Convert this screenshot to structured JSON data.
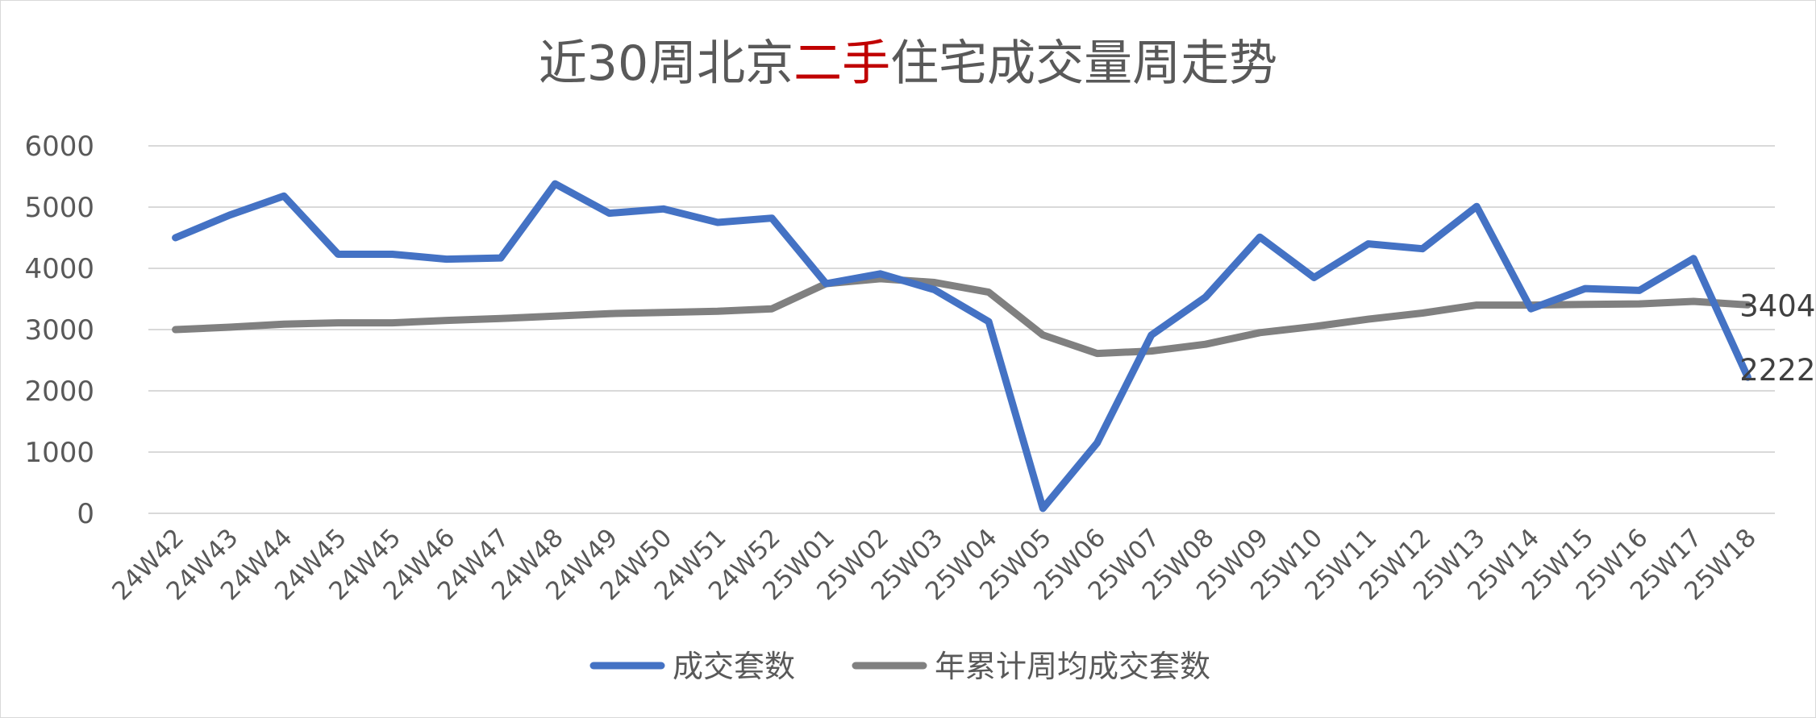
{
  "chart_data": {
    "type": "line",
    "title": {
      "before": "近30周北京",
      "accent": "二手",
      "after": "住宅成交量周走势"
    },
    "accent_color": "#c00000",
    "categories": [
      "24W42",
      "24W43",
      "24W44",
      "24W45",
      "24W45",
      "24W46",
      "24W47",
      "24W48",
      "24W49",
      "24W50",
      "24W51",
      "24W52",
      "25W01",
      "25W02",
      "25W03",
      "25W04",
      "25W05",
      "25W06",
      "25W07",
      "25W08",
      "25W09",
      "25W10",
      "25W11",
      "25W12",
      "25W13",
      "25W14",
      "25W15",
      "25W16",
      "25W17",
      "25W18"
    ],
    "ylim": [
      0,
      6000
    ],
    "yticks": [
      "0",
      "1000",
      "2000",
      "3000",
      "4000",
      "5000",
      "6000"
    ],
    "grid": true,
    "legend_position": "bottom",
    "series": [
      {
        "name": "成交套数",
        "color": "#4472c4",
        "values": [
          4500,
          4870,
          5180,
          4230,
          4230,
          4150,
          4170,
          5380,
          4900,
          4970,
          4750,
          4820,
          3750,
          3910,
          3650,
          3130,
          80,
          1150,
          2910,
          3530,
          4510,
          3850,
          4400,
          4320,
          5010,
          3340,
          3670,
          3640,
          4160,
          2222
        ],
        "end_label": "2222"
      },
      {
        "name": "年累计周均成交套数",
        "color": "#808080",
        "values": [
          3000,
          3040,
          3090,
          3110,
          3110,
          3150,
          3180,
          3220,
          3260,
          3280,
          3300,
          3340,
          3750,
          3830,
          3770,
          3610,
          2910,
          2610,
          2650,
          2760,
          2950,
          3050,
          3170,
          3270,
          3400,
          3400,
          3410,
          3420,
          3460,
          3404
        ],
        "end_label": "3404"
      }
    ]
  }
}
